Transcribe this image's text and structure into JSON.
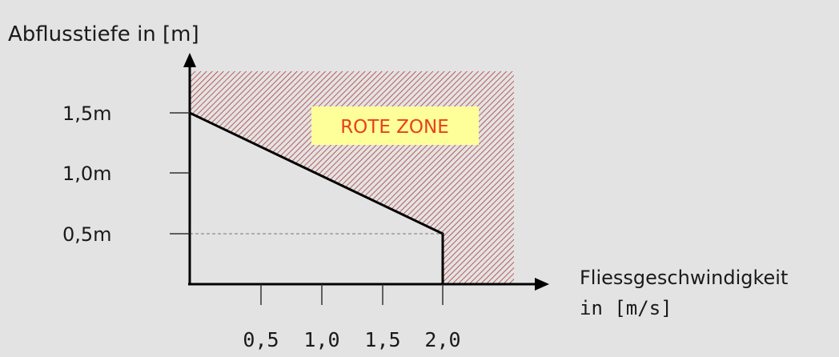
{
  "diagram": {
    "y_axis_title": "Abflusstiefe in [m]",
    "x_axis_title_line1": "Fliessgeschwindigkeit",
    "x_axis_title_line2": "in [m/s]",
    "zone_label": "ROTE ZONE",
    "y_ticks": [
      "1,5m",
      "1,0m",
      "0,5m"
    ],
    "x_ticks": [
      "0,5",
      "1,0",
      "1,5",
      "2,0"
    ],
    "colors": {
      "background": "#e3e3e3",
      "hatch": "#b03a3a",
      "zone_box": "#ffff99",
      "zone_text": "#e8401c",
      "axis": "#000000"
    }
  }
}
